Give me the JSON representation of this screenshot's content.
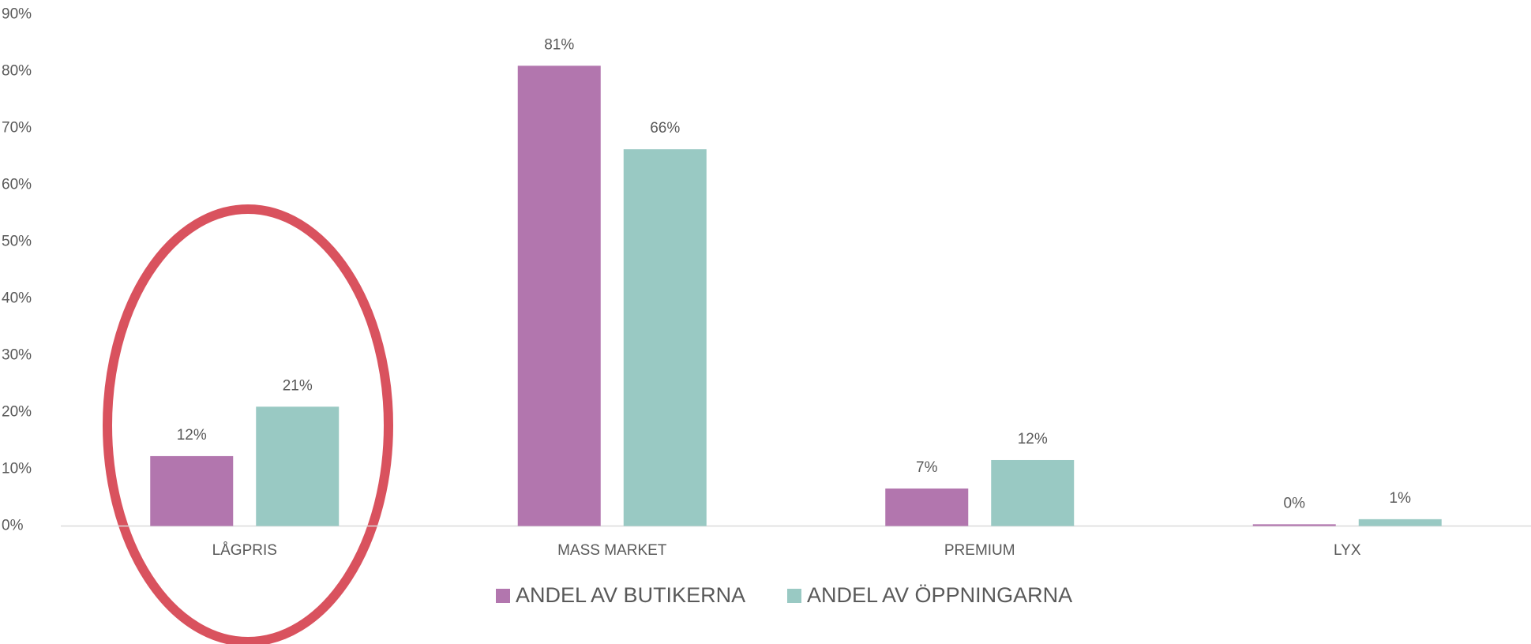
{
  "chart_data": {
    "type": "bar",
    "categories": [
      "LÅGPRIS",
      "MASS MARKET",
      "PREMIUM",
      "LYX"
    ],
    "series": [
      {
        "name": "ANDEL AV BUTIKERNA",
        "color": "#b276ae",
        "values": [
          12.3,
          81,
          6.6,
          0.3
        ],
        "value_labels": [
          "12%",
          "81%",
          "7%",
          "0%"
        ]
      },
      {
        "name": "ANDEL AV ÖPPNINGARNA",
        "color": "#99c9c3",
        "values": [
          21,
          66.3,
          11.6,
          1.2
        ],
        "value_labels": [
          "21%",
          "66%",
          "12%",
          "1%"
        ]
      }
    ],
    "ylim": [
      0,
      90
    ],
    "yticks": [
      {
        "value": 0,
        "label": "0%"
      },
      {
        "value": 10,
        "label": "10%"
      },
      {
        "value": 20,
        "label": "20%"
      },
      {
        "value": 30,
        "label": "30%"
      },
      {
        "value": 40,
        "label": "40%"
      },
      {
        "value": 50,
        "label": "50%"
      },
      {
        "value": 60,
        "label": "60%"
      },
      {
        "value": 70,
        "label": "70%"
      },
      {
        "value": 80,
        "label": "80%"
      },
      {
        "value": 90,
        "label": "90%"
      }
    ],
    "grid": false,
    "legend": "bottom"
  }
}
